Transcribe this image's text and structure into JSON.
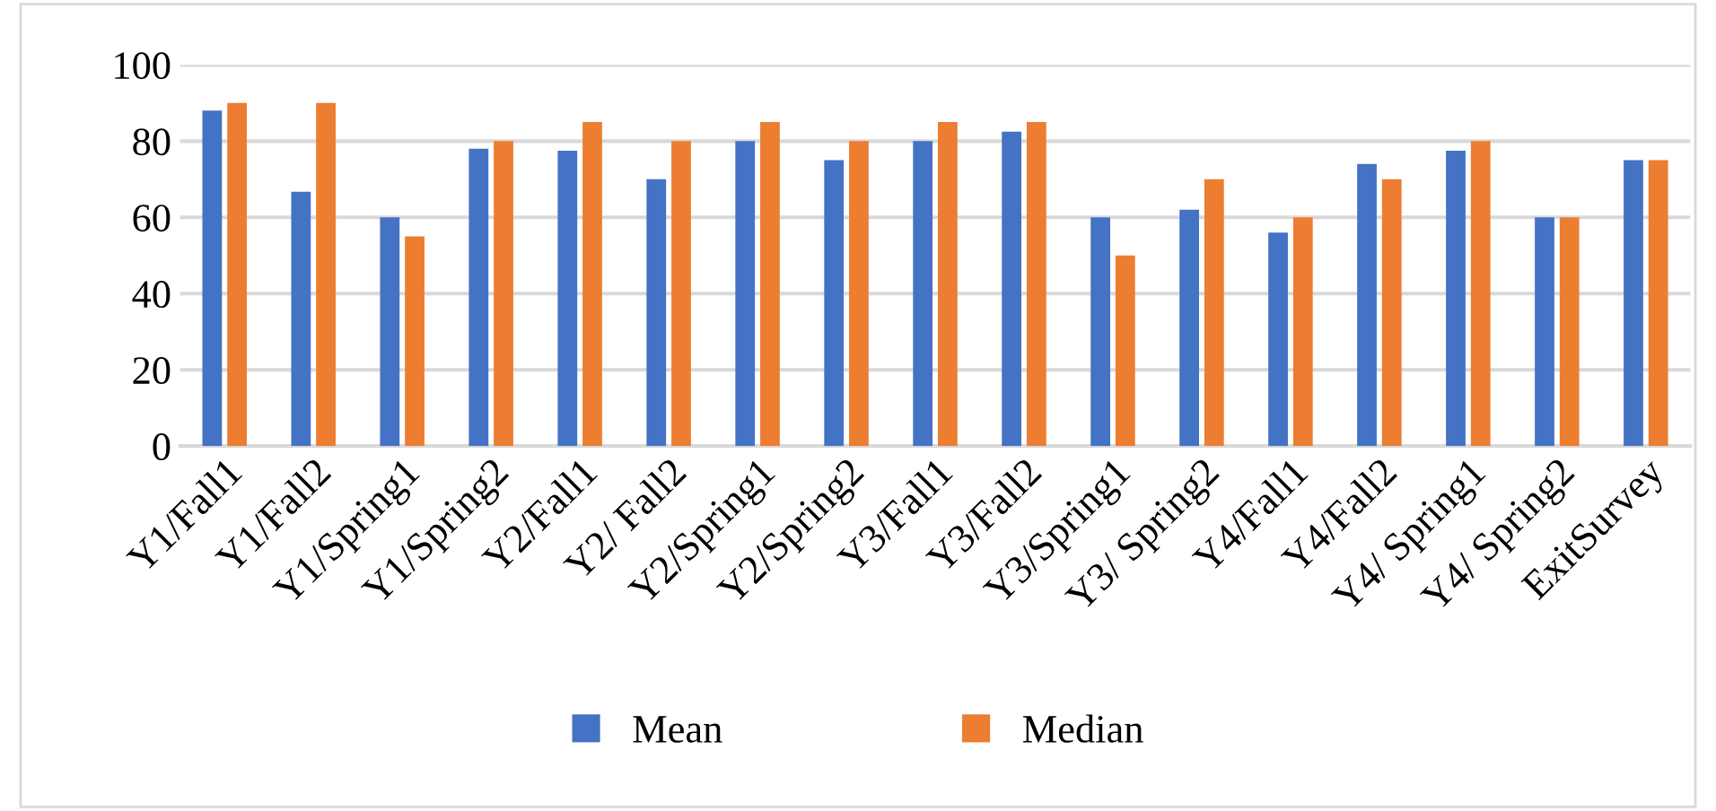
{
  "chart_data": {
    "type": "bar",
    "categories": [
      "Y1/Fall1",
      "Y1/Fall2",
      "Y1/Spring1",
      "Y1/Spring2",
      "Y2/Fall1",
      "Y2/ Fall2",
      "Y2/Spring1",
      "Y2/Spring2",
      "Y3/Fall1",
      "Y3/Fall2",
      "Y3/Spring1",
      "Y3/ Spring2",
      "Y4/Fall1",
      "Y4/Fall2",
      "Y4/ Spring1",
      "Y4/ Spring2",
      "ExitSurvey"
    ],
    "series": [
      {
        "name": "Mean",
        "color": "#4472c4",
        "values": [
          88,
          66.7,
          60,
          78,
          77.5,
          70,
          80,
          75,
          80,
          82.5,
          60,
          62,
          56,
          74,
          77.5,
          60,
          75
        ]
      },
      {
        "name": "Median",
        "color": "#ed7d31",
        "values": [
          90,
          90,
          55,
          80,
          85,
          80,
          85,
          80,
          85,
          85,
          50,
          70,
          60,
          70,
          80,
          60,
          75
        ]
      }
    ],
    "ylim": [
      0,
      100
    ],
    "yticks": [
      0,
      20,
      40,
      60,
      80,
      100
    ],
    "grid": "y",
    "legend": "bottom"
  }
}
